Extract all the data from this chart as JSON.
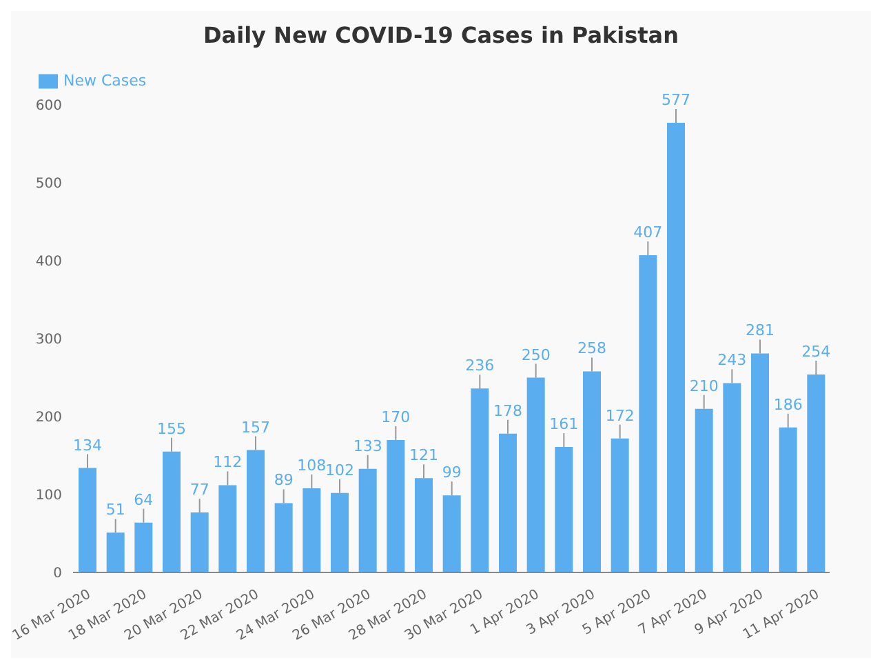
{
  "chart_data": {
    "type": "bar",
    "title": "Daily New COVID-19 Cases in Pakistan",
    "categories": [
      "16 Mar 2020",
      null,
      "18 Mar 2020",
      null,
      "20 Mar 2020",
      null,
      "22 Mar 2020",
      null,
      "24 Mar 2020",
      null,
      "26 Mar 2020",
      null,
      "28 Mar 2020",
      null,
      "30 Mar 2020",
      null,
      "1 Apr 2020",
      null,
      "3 Apr 2020",
      null,
      "5 Apr 2020",
      null,
      "7 Apr 2020",
      null,
      "9 Apr 2020",
      null,
      "11 Apr 2020"
    ],
    "series": [
      {
        "name": "New Cases",
        "color": "#5aaef0",
        "values": [
          134,
          51,
          64,
          155,
          77,
          112,
          157,
          89,
          108,
          102,
          133,
          170,
          121,
          99,
          236,
          178,
          250,
          161,
          258,
          172,
          407,
          577,
          210,
          243,
          281,
          186,
          254
        ]
      }
    ],
    "ylim": [
      0,
      600
    ],
    "yticks": [
      0,
      100,
      200,
      300,
      400,
      500,
      600
    ],
    "grid": false,
    "legend": "top left",
    "data_labels": true
  }
}
